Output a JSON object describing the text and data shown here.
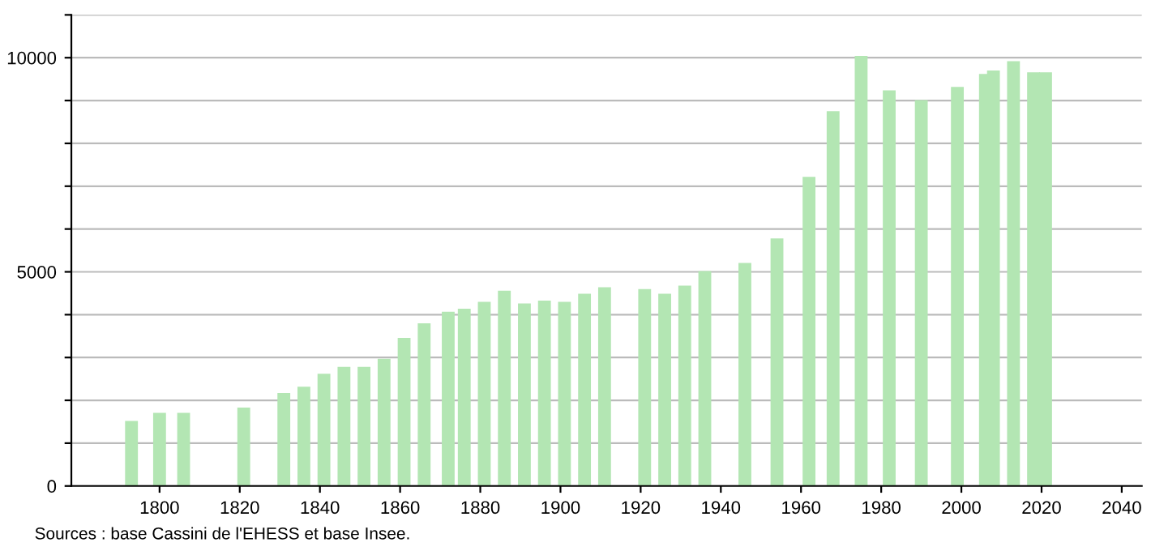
{
  "chart_data": {
    "type": "bar",
    "x": [
      1793,
      1800,
      1806,
      1821,
      1831,
      1836,
      1841,
      1846,
      1851,
      1856,
      1861,
      1866,
      1872,
      1876,
      1881,
      1886,
      1891,
      1896,
      1901,
      1906,
      1911,
      1921,
      1926,
      1931,
      1936,
      1946,
      1954,
      1962,
      1968,
      1975,
      1982,
      1990,
      1999,
      2006,
      2008,
      2013,
      2018,
      2021
    ],
    "values": [
      1520,
      1710,
      1710,
      1830,
      2170,
      2320,
      2620,
      2780,
      2780,
      2970,
      3460,
      3800,
      4070,
      4140,
      4300,
      4560,
      4260,
      4330,
      4300,
      4490,
      4640,
      4600,
      4490,
      4680,
      5020,
      5210,
      5780,
      7220,
      8750,
      10040,
      9240,
      9010,
      9320,
      9620,
      9700,
      9920,
      9660,
      9660
    ],
    "color": "#b3e6b3",
    "xlim": [
      1778,
      2045
    ],
    "xticks": [
      1800,
      1820,
      1840,
      1860,
      1880,
      1900,
      1920,
      1940,
      1960,
      1980,
      2000,
      2020,
      2040
    ],
    "ylim": [
      0,
      11000
    ],
    "yticks": [
      0,
      {
        "value": 1000,
        "label": null
      },
      {
        "value": 2000,
        "label": null
      },
      {
        "value": 3000,
        "label": null
      },
      {
        "value": 4000,
        "label": null
      },
      5000,
      {
        "value": 6000,
        "label": null
      },
      {
        "value": 7000,
        "label": null
      },
      {
        "value": 8000,
        "label": null
      },
      {
        "value": 9000,
        "label": null
      },
      10000,
      {
        "value": 11000,
        "label": null
      }
    ],
    "grid": "y",
    "annotations": [
      "Sources : base Cassini de l'EHESS et base Insee."
    ]
  }
}
